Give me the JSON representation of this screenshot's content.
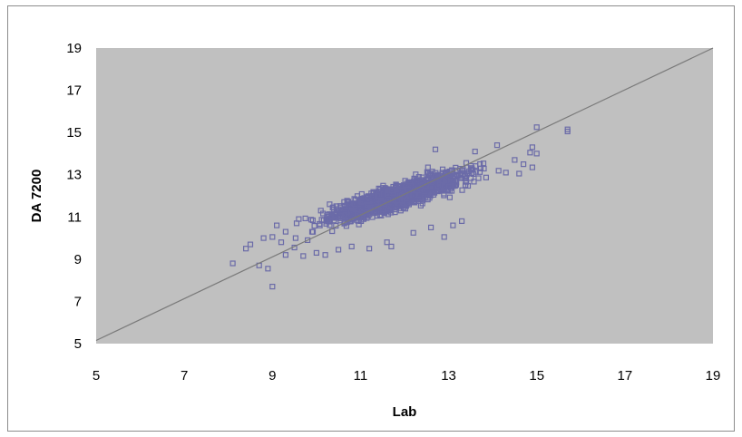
{
  "chart_data": {
    "type": "scatter",
    "title": "",
    "xlabel": "Lab",
    "ylabel": "DA 7200",
    "xlim": [
      5,
      19
    ],
    "ylim": [
      5,
      19
    ],
    "x_ticks": [
      "5",
      "7",
      "9",
      "11",
      "13",
      "15",
      "17",
      "19"
    ],
    "y_ticks": [
      "5",
      "7",
      "9",
      "11",
      "13",
      "15",
      "17",
      "19"
    ],
    "grid": false,
    "legend": "none",
    "colors": {
      "plot_background": "#c0c0c0",
      "marker": "#6b6ba8",
      "line": "#7a7a7a"
    },
    "reference_line": {
      "from": [
        5,
        5.15
      ],
      "to": [
        19,
        19
      ]
    },
    "series": [
      {
        "marker": "square-hollow",
        "points": [
          [
            8.1,
            8.8
          ],
          [
            8.4,
            9.5
          ],
          [
            8.5,
            9.7
          ],
          [
            8.7,
            8.7
          ],
          [
            8.9,
            8.55
          ],
          [
            9.0,
            7.7
          ],
          [
            8.8,
            10.0
          ],
          [
            9.0,
            10.05
          ],
          [
            9.1,
            10.6
          ],
          [
            9.2,
            9.8
          ],
          [
            9.3,
            10.3
          ],
          [
            9.3,
            9.2
          ],
          [
            9.5,
            9.55
          ],
          [
            9.55,
            10.7
          ],
          [
            9.6,
            10.9
          ],
          [
            9.7,
            9.15
          ],
          [
            9.8,
            9.9
          ],
          [
            9.9,
            10.3
          ],
          [
            10.0,
            9.3
          ],
          [
            10.2,
            9.2
          ],
          [
            10.1,
            11.3
          ],
          [
            10.3,
            11.6
          ],
          [
            10.5,
            9.45
          ],
          [
            10.8,
            9.6
          ],
          [
            11.2,
            9.5
          ],
          [
            11.6,
            9.8
          ],
          [
            11.7,
            9.6
          ],
          [
            12.2,
            10.25
          ],
          [
            12.9,
            10.05
          ],
          [
            12.6,
            10.5
          ],
          [
            13.1,
            10.6
          ],
          [
            13.3,
            10.8
          ],
          [
            12.7,
            14.2
          ],
          [
            13.6,
            14.1
          ],
          [
            14.1,
            14.4
          ],
          [
            14.3,
            13.1
          ],
          [
            14.5,
            13.7
          ],
          [
            14.6,
            13.05
          ],
          [
            14.7,
            13.5
          ],
          [
            14.9,
            13.35
          ],
          [
            14.85,
            14.05
          ],
          [
            14.9,
            14.3
          ],
          [
            15.0,
            14.0
          ],
          [
            15.0,
            15.25
          ],
          [
            15.7,
            15.15
          ],
          [
            15.7,
            15.05
          ]
        ]
      }
    ]
  }
}
